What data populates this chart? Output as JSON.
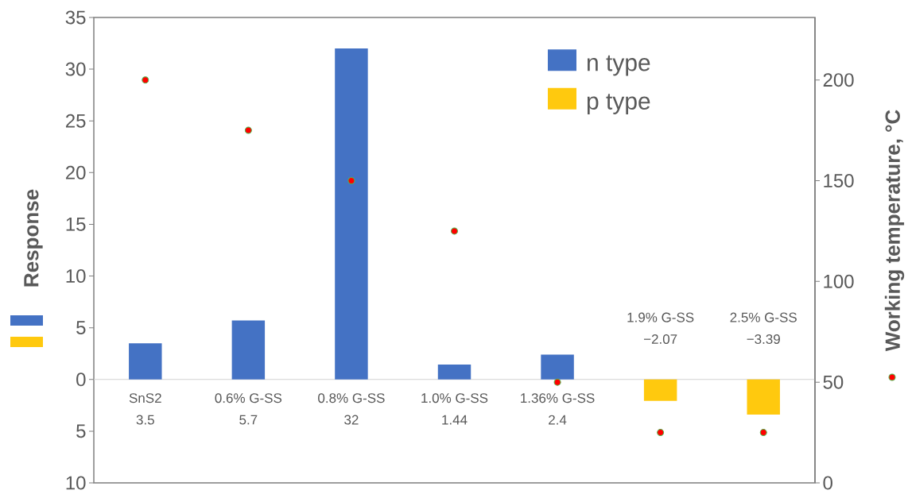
{
  "chart_data": {
    "type": "bar",
    "categories": [
      "SnS2",
      "0.6% G-SS",
      "0.8% G-SS",
      "1.0% G-SS",
      "1.36% G-SS",
      "1.9% G-SS",
      "2.5% G-SS"
    ],
    "ylabel": "Response",
    "y2label": "Working temperature, °C",
    "series": [
      {
        "name": "n type",
        "color": "#4472c4",
        "values": [
          3.5,
          5.7,
          32,
          1.44,
          2.4,
          null,
          null
        ],
        "value_labels": [
          "3.5",
          "5.7",
          "32",
          "1.44",
          "2.4",
          null,
          null
        ]
      },
      {
        "name": "p type",
        "color": "#ffc90e",
        "values": [
          null,
          null,
          null,
          null,
          null,
          -2.07,
          -3.39
        ],
        "value_labels": [
          null,
          null,
          null,
          null,
          null,
          "−2.07",
          "−3.39"
        ]
      },
      {
        "type": "scatter",
        "axis": "y2",
        "color": "#ff0000",
        "marker": "circle",
        "values": [
          200,
          175,
          150,
          125,
          50,
          25,
          25
        ]
      }
    ],
    "ylim": [
      -10,
      35
    ],
    "yticks": [
      {
        "value": -10,
        "label": "10"
      },
      {
        "value": -5,
        "label": "5"
      },
      0,
      5,
      10,
      15,
      20,
      25,
      30,
      35
    ],
    "y2lim": [
      0,
      231
    ],
    "y2ticks": [
      0,
      50,
      100,
      150,
      200
    ],
    "legend": "top right"
  }
}
